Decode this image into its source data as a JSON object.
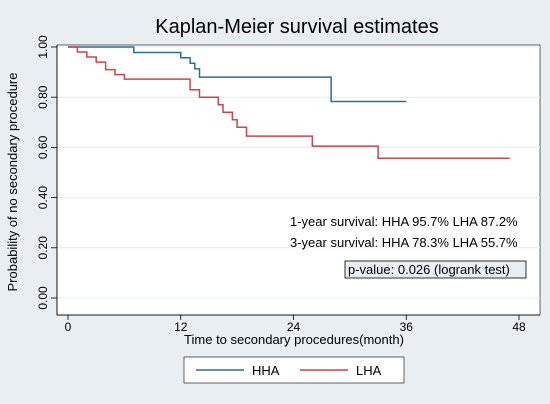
{
  "chart_data": {
    "type": "line",
    "title": "Kaplan-Meier survival estimates",
    "xlabel": "Time to secondary procedures(month)",
    "ylabel": "Probability of no secondary procedure",
    "xlim": [
      0,
      48
    ],
    "ylim": [
      0,
      1
    ],
    "x_ticks": [
      "0",
      "12",
      "24",
      "36",
      "48"
    ],
    "y_ticks": [
      "0.00",
      "0.20",
      "0.40",
      "0.60",
      "0.80",
      "1.00"
    ],
    "step": true,
    "grid": "horizontal",
    "legend_position": "bottom",
    "series": [
      {
        "name": "HHA",
        "color": "#2a6e99",
        "points": [
          [
            0,
            1.0
          ],
          [
            7,
            0.978
          ],
          [
            12,
            0.957
          ],
          [
            13,
            0.935
          ],
          [
            13.5,
            0.913
          ],
          [
            14,
            0.88
          ],
          [
            28,
            0.783
          ],
          [
            36,
            0.783
          ]
        ]
      },
      {
        "name": "LHA",
        "color": "#c6474e",
        "points": [
          [
            0,
            1.0
          ],
          [
            1,
            0.98
          ],
          [
            2,
            0.96
          ],
          [
            3,
            0.94
          ],
          [
            4,
            0.91
          ],
          [
            5,
            0.89
          ],
          [
            6,
            0.872
          ],
          [
            12,
            0.872
          ],
          [
            13,
            0.83
          ],
          [
            14,
            0.8
          ],
          [
            16,
            0.77
          ],
          [
            16.5,
            0.74
          ],
          [
            17.5,
            0.71
          ],
          [
            18,
            0.68
          ],
          [
            19,
            0.645
          ],
          [
            26,
            0.605
          ],
          [
            33,
            0.557
          ],
          [
            47,
            0.557
          ]
        ]
      }
    ],
    "annotations": [
      "1-year survival: HHA 95.7% LHA 87.2%",
      "3-year survival: HHA 78.3% LHA 55.7%",
      "p-value: 0.026 (logrank test)"
    ]
  }
}
